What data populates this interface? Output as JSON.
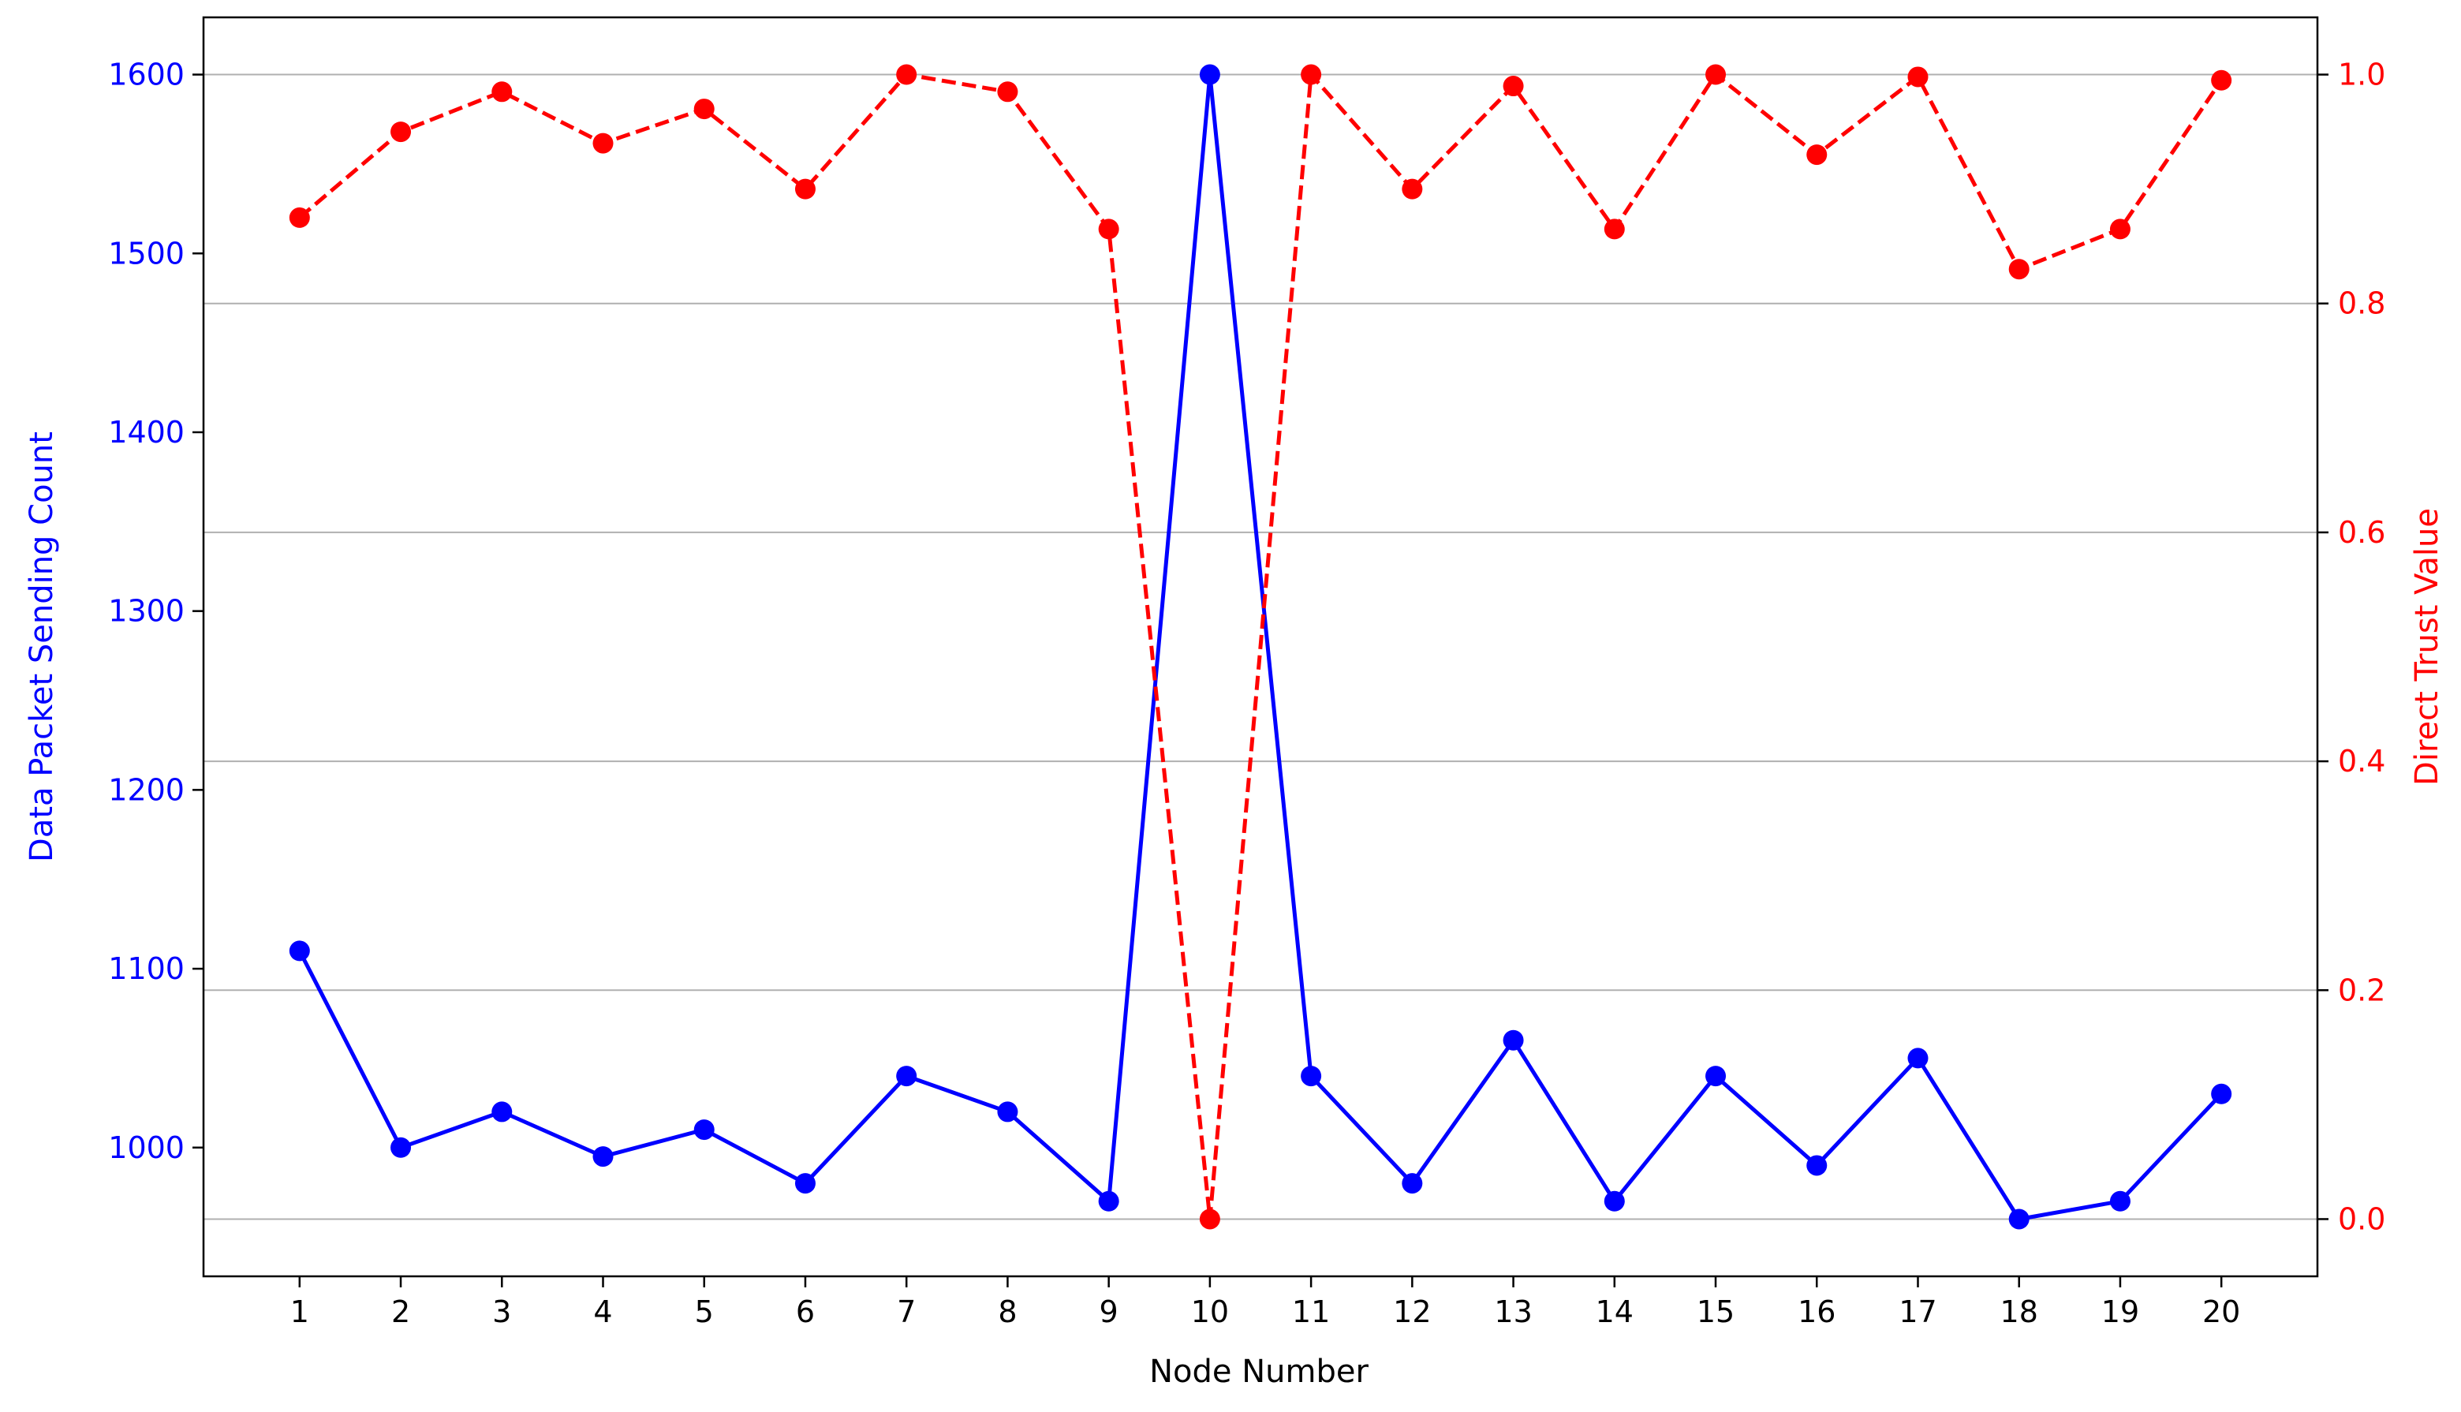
{
  "chart_data": {
    "type": "line",
    "title": "",
    "xlabel": "Node Number",
    "ylabel_left": "Data Packet Sending Count",
    "ylabel_right": "Direct Trust Value",
    "x": [
      1,
      2,
      3,
      4,
      5,
      6,
      7,
      8,
      9,
      10,
      11,
      12,
      13,
      14,
      15,
      16,
      17,
      18,
      19,
      20
    ],
    "x_ticks": [
      "1",
      "2",
      "3",
      "4",
      "5",
      "6",
      "7",
      "8",
      "9",
      "10",
      "11",
      "12",
      "13",
      "14",
      "15",
      "16",
      "17",
      "18",
      "19",
      "20"
    ],
    "y_left_ticks": [
      "1000",
      "1100",
      "1200",
      "1300",
      "1400",
      "1500",
      "1600"
    ],
    "y_left_tick_values": [
      1000,
      1100,
      1200,
      1300,
      1400,
      1500,
      1600
    ],
    "y_right_ticks": [
      "0.0",
      "0.2",
      "0.4",
      "0.6",
      "0.8",
      "1.0"
    ],
    "y_right_tick_values": [
      0.0,
      0.2,
      0.4,
      0.6,
      0.8,
      1.0
    ],
    "ylim_left": [
      928,
      1632
    ],
    "ylim_right": [
      -0.05,
      1.05
    ],
    "grid": "horizontal lines at right-axis ticks",
    "series": [
      {
        "axis": "left",
        "color": "#0000ff",
        "style": "solid",
        "marker": "circle",
        "values": [
          1110,
          1000,
          1020,
          995,
          1010,
          980,
          1040,
          1020,
          970,
          1600,
          1040,
          980,
          1060,
          970,
          1040,
          990,
          1050,
          960,
          970,
          1030
        ]
      },
      {
        "axis": "right",
        "color": "#ff0000",
        "style": "dashed",
        "marker": "circle",
        "values": [
          0.875,
          0.95,
          0.985,
          0.94,
          0.97,
          0.9,
          1.0,
          0.985,
          0.865,
          0.0,
          1.0,
          0.9,
          0.99,
          0.865,
          1.0,
          0.93,
          0.998,
          0.83,
          0.865,
          0.995
        ]
      }
    ]
  }
}
